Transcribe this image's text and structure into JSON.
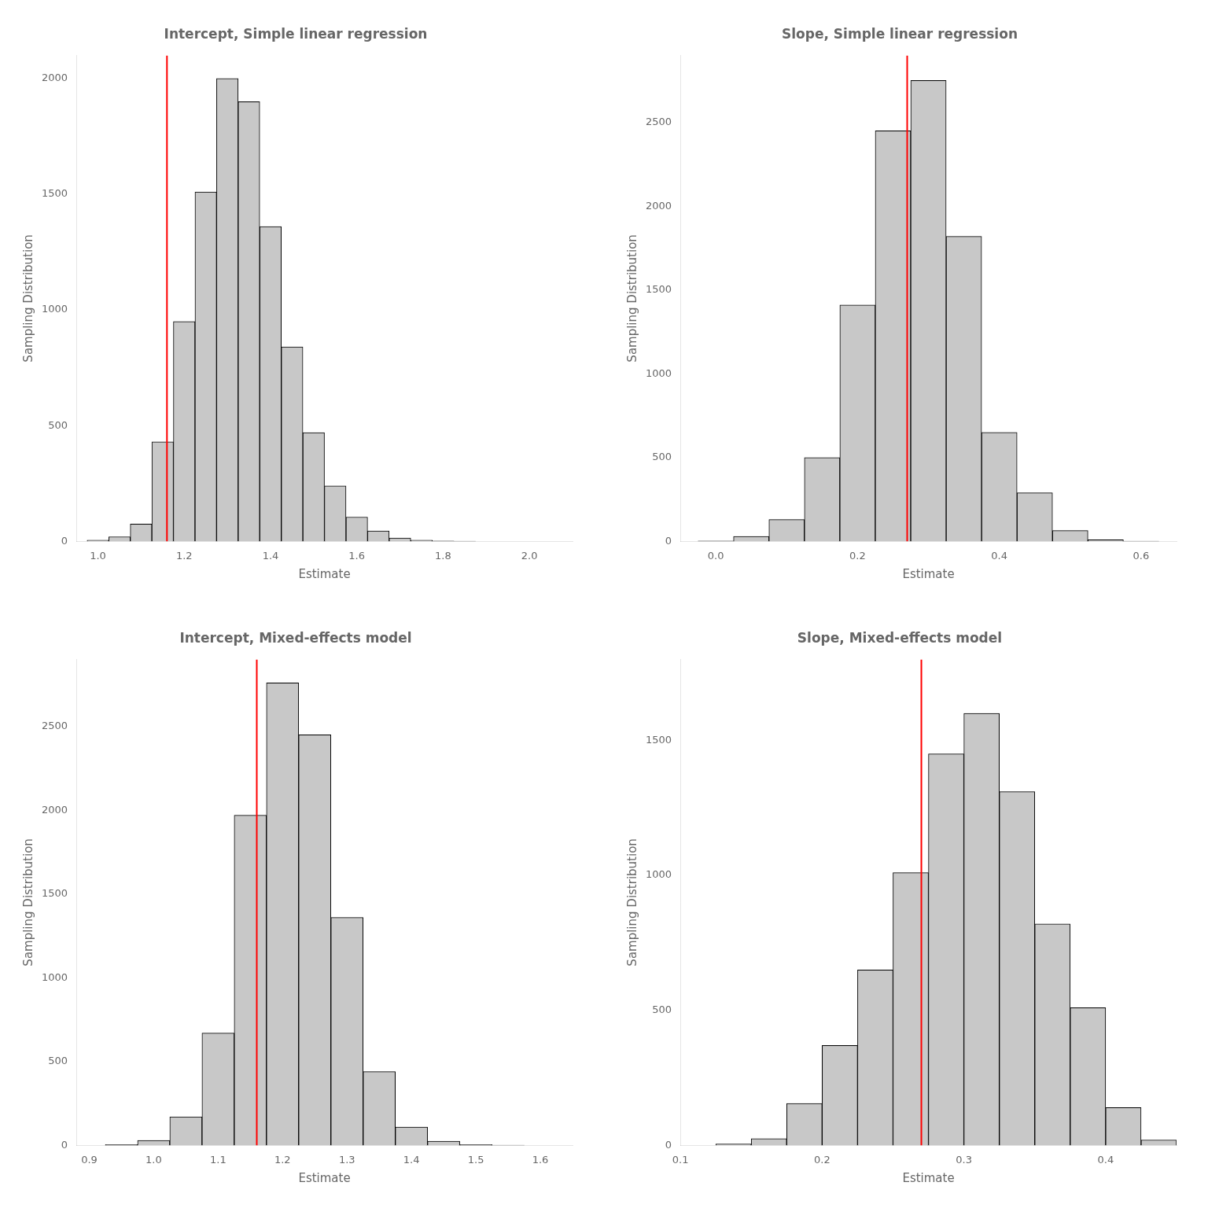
{
  "chart_data": [
    {
      "type": "histogram",
      "title": "Intercept, Simple linear regression",
      "xlabel": "Estimate",
      "ylabel": "Sampling Distribution",
      "bins": [
        0.975,
        1.025,
        1.075,
        1.125,
        1.175,
        1.225,
        1.275,
        1.325,
        1.375,
        1.425,
        1.475,
        1.525,
        1.575,
        1.625,
        1.675,
        1.725,
        1.775,
        1.825,
        1.875,
        1.925
      ],
      "values": [
        5,
        20,
        75,
        430,
        950,
        1510,
        2000,
        1900,
        1360,
        840,
        470,
        240,
        105,
        45,
        15,
        5,
        2,
        1,
        0
      ],
      "color": "#c8c8c8",
      "xlim": [
        0.95,
        2.1
      ],
      "xticks": [
        {
          "value": 1.0,
          "label": "1.0"
        },
        1.2,
        1.4,
        1.6,
        1.8,
        {
          "value": 2.0,
          "label": "2.0"
        }
      ],
      "ylim": [
        0,
        2100
      ],
      "yticks": [
        0,
        500,
        1000,
        1500,
        2000
      ],
      "grid": false,
      "annotations": [
        {
          "type": "vline",
          "x": 1.16,
          "color": "red"
        }
      ]
    },
    {
      "type": "histogram",
      "title": "Slope, Simple linear regression",
      "xlabel": "Estimate",
      "ylabel": "Sampling Distribution",
      "bins": [
        -0.025,
        0.025,
        0.075,
        0.125,
        0.175,
        0.225,
        0.275,
        0.325,
        0.375,
        0.425,
        0.475,
        0.525,
        0.575,
        0.625
      ],
      "values": [
        3,
        30,
        130,
        500,
        1410,
        2450,
        2750,
        1820,
        650,
        290,
        65,
        10,
        2
      ],
      "color": "#c8c8c8",
      "xlim": [
        -0.05,
        0.65
      ],
      "xticks": [
        {
          "value": 0.0,
          "label": "0.0"
        },
        0.2,
        0.4,
        0.6
      ],
      "ylim": [
        0,
        2900
      ],
      "yticks": [
        0,
        500,
        1000,
        1500,
        2000,
        2500
      ],
      "grid": false,
      "annotations": [
        {
          "type": "vline",
          "x": 0.27,
          "color": "red"
        }
      ]
    },
    {
      "type": "histogram",
      "title": "Intercept, Mixed-effects model",
      "xlabel": "Estimate",
      "ylabel": "Sampling Distribution",
      "bins": [
        0.925,
        0.975,
        1.025,
        1.075,
        1.125,
        1.175,
        1.225,
        1.275,
        1.325,
        1.375,
        1.425,
        1.475,
        1.525,
        1.575
      ],
      "values": [
        5,
        30,
        170,
        670,
        1970,
        2760,
        2450,
        1360,
        440,
        110,
        25,
        5,
        1
      ],
      "color": "#c8c8c8",
      "xlim": [
        0.88,
        1.65
      ],
      "xticks": [
        0.9,
        {
          "value": 1.0,
          "label": "1.0"
        },
        1.1,
        1.2,
        1.3,
        1.4,
        1.5,
        1.6
      ],
      "ylim": [
        0,
        2900
      ],
      "yticks": [
        0,
        500,
        1000,
        1500,
        2000,
        2500
      ],
      "grid": false,
      "annotations": [
        {
          "type": "vline",
          "x": 1.16,
          "color": "red"
        }
      ]
    },
    {
      "type": "histogram",
      "title": "Slope, Mixed-effects model",
      "xlabel": "Estimate",
      "ylabel": "Sampling Distribution",
      "bins": [
        0.125,
        0.15,
        0.175,
        0.2,
        0.225,
        0.25,
        0.275,
        0.3,
        0.325,
        0.35,
        0.375,
        0.4,
        0.425,
        0.45
      ],
      "values": [
        5,
        25,
        155,
        370,
        650,
        1010,
        1450,
        1600,
        1310,
        820,
        510,
        140,
        20
      ],
      "color": "#c8c8c8",
      "xlim": [
        0.1,
        0.45
      ],
      "xticks": [
        0.1,
        0.2,
        0.3,
        0.4
      ],
      "ylim": [
        0,
        1800
      ],
      "yticks": [
        0,
        500,
        1000,
        1500
      ],
      "grid": false,
      "annotations": [
        {
          "type": "vline",
          "x": 0.27,
          "color": "red"
        }
      ]
    }
  ]
}
